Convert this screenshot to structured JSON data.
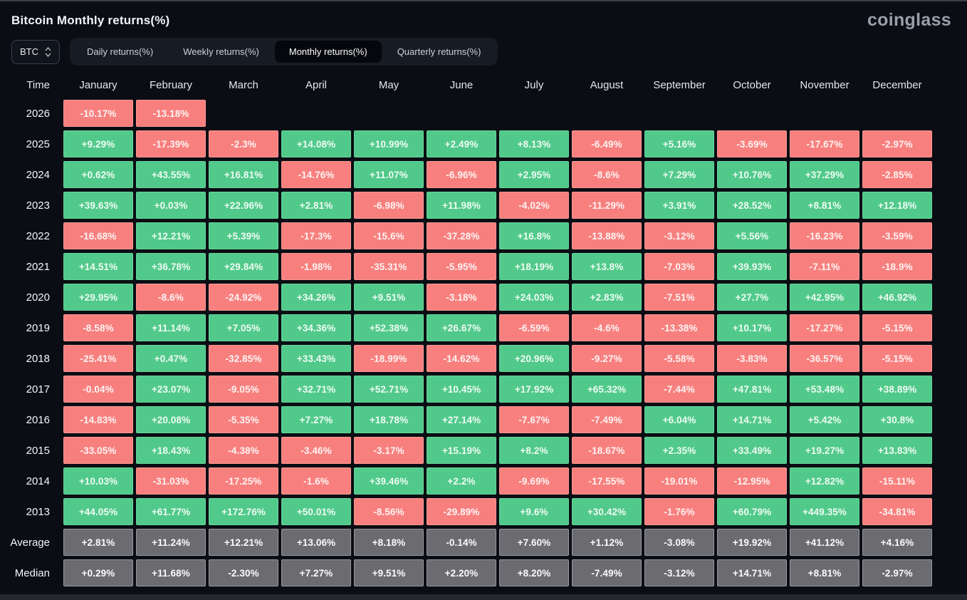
{
  "page": {
    "title": "Bitcoin Monthly returns(%)",
    "brand": "coinglass"
  },
  "controls": {
    "coin_selector": {
      "label": "BTC"
    },
    "tabs": [
      {
        "label": "Daily returns(%)",
        "active": false
      },
      {
        "label": "Weekly returns(%)",
        "active": false
      },
      {
        "label": "Monthly returns(%)",
        "active": true
      },
      {
        "label": "Quarterly returns(%)",
        "active": false
      }
    ]
  },
  "colors": {
    "positive": "#51c98a",
    "negative": "#f7807e",
    "summary": "#6c6c70",
    "background": "#0a0d13",
    "active_tab": "#05070c"
  },
  "chart_data": {
    "type": "heatmap",
    "title": "Bitcoin Monthly returns(%)",
    "legend_note": "green = positive monthly return, red = negative, gray = summary rows",
    "columns": [
      "Time",
      "January",
      "February",
      "March",
      "April",
      "May",
      "June",
      "July",
      "August",
      "September",
      "October",
      "November",
      "December"
    ],
    "rows": [
      {
        "time": "2026",
        "kind": "year",
        "values": [
          "-10.17%",
          "-13.18%",
          null,
          null,
          null,
          null,
          null,
          null,
          null,
          null,
          null,
          null
        ]
      },
      {
        "time": "2025",
        "kind": "year",
        "values": [
          "+9.29%",
          "-17.39%",
          "-2.3%",
          "+14.08%",
          "+10.99%",
          "+2.49%",
          "+8.13%",
          "-6.49%",
          "+5.16%",
          "-3.69%",
          "-17.67%",
          "-2.97%"
        ]
      },
      {
        "time": "2024",
        "kind": "year",
        "values": [
          "+0.62%",
          "+43.55%",
          "+16.81%",
          "-14.76%",
          "+11.07%",
          "-6.96%",
          "+2.95%",
          "-8.6%",
          "+7.29%",
          "+10.76%",
          "+37.29%",
          "-2.85%"
        ]
      },
      {
        "time": "2023",
        "kind": "year",
        "values": [
          "+39.63%",
          "+0.03%",
          "+22.96%",
          "+2.81%",
          "-6.98%",
          "+11.98%",
          "-4.02%",
          "-11.29%",
          "+3.91%",
          "+28.52%",
          "+8.81%",
          "+12.18%"
        ]
      },
      {
        "time": "2022",
        "kind": "year",
        "values": [
          "-16.68%",
          "+12.21%",
          "+5.39%",
          "-17.3%",
          "-15.6%",
          "-37.28%",
          "+16.8%",
          "-13.88%",
          "-3.12%",
          "+5.56%",
          "-16.23%",
          "-3.59%"
        ]
      },
      {
        "time": "2021",
        "kind": "year",
        "values": [
          "+14.51%",
          "+36.78%",
          "+29.84%",
          "-1.98%",
          "-35.31%",
          "-5.95%",
          "+18.19%",
          "+13.8%",
          "-7.03%",
          "+39.93%",
          "-7.11%",
          "-18.9%"
        ]
      },
      {
        "time": "2020",
        "kind": "year",
        "values": [
          "+29.95%",
          "-8.6%",
          "-24.92%",
          "+34.26%",
          "+9.51%",
          "-3.18%",
          "+24.03%",
          "+2.83%",
          "-7.51%",
          "+27.7%",
          "+42.95%",
          "+46.92%"
        ]
      },
      {
        "time": "2019",
        "kind": "year",
        "values": [
          "-8.58%",
          "+11.14%",
          "+7.05%",
          "+34.36%",
          "+52.38%",
          "+26.67%",
          "-6.59%",
          "-4.6%",
          "-13.38%",
          "+10.17%",
          "-17.27%",
          "-5.15%"
        ]
      },
      {
        "time": "2018",
        "kind": "year",
        "values": [
          "-25.41%",
          "+0.47%",
          "-32.85%",
          "+33.43%",
          "-18.99%",
          "-14.62%",
          "+20.96%",
          "-9.27%",
          "-5.58%",
          "-3.83%",
          "-36.57%",
          "-5.15%"
        ]
      },
      {
        "time": "2017",
        "kind": "year",
        "values": [
          "-0.04%",
          "+23.07%",
          "-9.05%",
          "+32.71%",
          "+52.71%",
          "+10.45%",
          "+17.92%",
          "+65.32%",
          "-7.44%",
          "+47.81%",
          "+53.48%",
          "+38.89%"
        ]
      },
      {
        "time": "2016",
        "kind": "year",
        "values": [
          "-14.83%",
          "+20.08%",
          "-5.35%",
          "+7.27%",
          "+18.78%",
          "+27.14%",
          "-7.67%",
          "-7.49%",
          "+6.04%",
          "+14.71%",
          "+5.42%",
          "+30.8%"
        ]
      },
      {
        "time": "2015",
        "kind": "year",
        "values": [
          "-33.05%",
          "+18.43%",
          "-4.38%",
          "-3.46%",
          "-3.17%",
          "+15.19%",
          "+8.2%",
          "-18.67%",
          "+2.35%",
          "+33.49%",
          "+19.27%",
          "+13.83%"
        ]
      },
      {
        "time": "2014",
        "kind": "year",
        "values": [
          "+10.03%",
          "-31.03%",
          "-17.25%",
          "-1.6%",
          "+39.46%",
          "+2.2%",
          "-9.69%",
          "-17.55%",
          "-19.01%",
          "-12.95%",
          "+12.82%",
          "-15.11%"
        ]
      },
      {
        "time": "2013",
        "kind": "year",
        "values": [
          "+44.05%",
          "+61.77%",
          "+172.76%",
          "+50.01%",
          "-8.56%",
          "-29.89%",
          "+9.6%",
          "+30.42%",
          "-1.76%",
          "+60.79%",
          "+449.35%",
          "-34.81%"
        ]
      },
      {
        "time": "Average",
        "kind": "summary",
        "values": [
          "+2.81%",
          "+11.24%",
          "+12.21%",
          "+13.06%",
          "+8.18%",
          "-0.14%",
          "+7.60%",
          "+1.12%",
          "-3.08%",
          "+19.92%",
          "+41.12%",
          "+4.16%"
        ]
      },
      {
        "time": "Median",
        "kind": "summary",
        "values": [
          "+0.29%",
          "+11.68%",
          "-2.30%",
          "+7.27%",
          "+9.51%",
          "+2.20%",
          "+8.20%",
          "-7.49%",
          "-3.12%",
          "+14.71%",
          "+8.81%",
          "-2.97%"
        ]
      }
    ]
  }
}
